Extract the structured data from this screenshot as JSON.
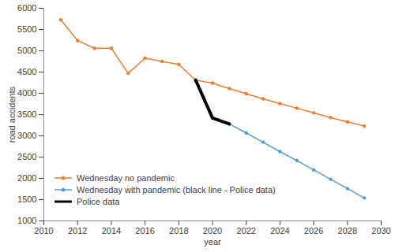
{
  "chart_data": {
    "type": "line",
    "x_label": "year",
    "y_label": "road accidents",
    "x": [
      2011,
      2012,
      2013,
      2014,
      2015,
      2016,
      2017,
      2018,
      2019,
      2020,
      2021,
      2022,
      2023,
      2024,
      2025,
      2026,
      2027,
      2028,
      2029
    ],
    "series": [
      {
        "name": "Wednesday no pandemic",
        "color": "#ed7d31",
        "marker": "circle",
        "line_style": "solid",
        "values": [
          5730,
          5240,
          5060,
          5060,
          4470,
          4830,
          4750,
          4680,
          4310,
          4240,
          4110,
          3990,
          3870,
          3760,
          3650,
          3540,
          3430,
          3330,
          3230
        ]
      },
      {
        "name": "Wednesday with pandemic (black line - Police data)",
        "color": "#5b9bd5",
        "marker": "circle",
        "line_style": "solid",
        "values": [
          null,
          null,
          null,
          null,
          null,
          null,
          null,
          null,
          4310,
          3420,
          3280,
          3070,
          2850,
          2630,
          2420,
          2200,
          1980,
          1760,
          1540
        ]
      },
      {
        "name": "Police data",
        "color": "#000000",
        "marker": "none",
        "line_style": "solid",
        "values": [
          null,
          null,
          null,
          null,
          null,
          null,
          null,
          null,
          4310,
          3420,
          3280,
          null,
          null,
          null,
          null,
          null,
          null,
          null,
          null
        ]
      }
    ],
    "xlim": [
      2010,
      2030
    ],
    "xticks": [
      2010,
      2012,
      2014,
      2016,
      2018,
      2020,
      2022,
      2024,
      2026,
      2028,
      2030
    ],
    "ylim": [
      1000,
      6000
    ],
    "yticks": [
      1000,
      1500,
      2000,
      2500,
      3000,
      3500,
      4000,
      4500,
      5000,
      5500,
      6000
    ],
    "grid": false,
    "legend": "lower left"
  }
}
